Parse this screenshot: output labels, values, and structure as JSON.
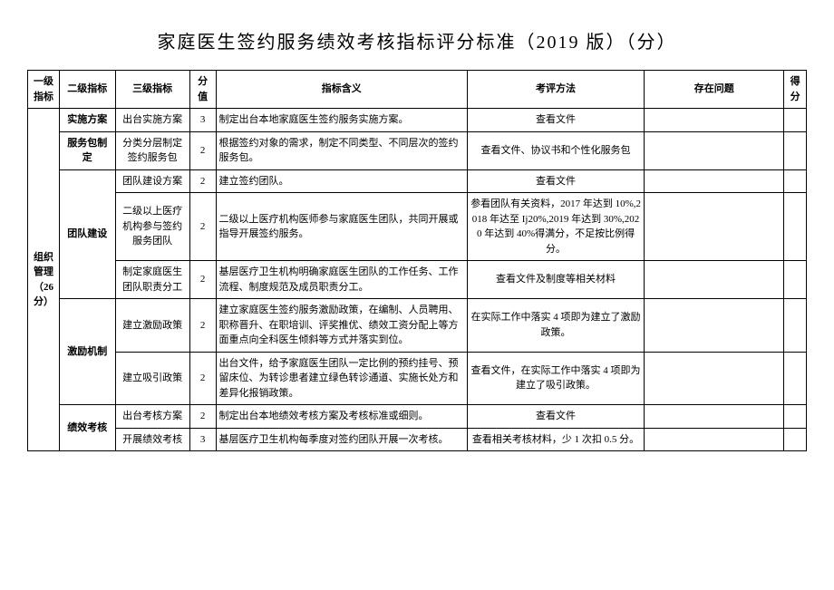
{
  "title": "家庭医生签约服务绩效考核指标评分标准（2019 版）（分）",
  "headers": {
    "l1": "一级指标",
    "l2": "二级指标",
    "l3": "三级指标",
    "score": "分值",
    "meaning": "指标含义",
    "method": "考评方法",
    "problem": "存在问题",
    "got": "得分"
  },
  "l1_label": "组织管理（26 分）",
  "groups": [
    {
      "l2": "实施方案",
      "rows": [
        {
          "l3": "出台实施方案",
          "score": "3",
          "meaning": "制定出台本地家庭医生签约服务实施方案。",
          "method": "查看文件",
          "problem": "",
          "got": ""
        }
      ]
    },
    {
      "l2": "服务包制定",
      "rows": [
        {
          "l3": "分类分层制定签约服务包",
          "score": "2",
          "meaning": "根据签约对象的需求，制定不同类型、不同层次的签约服务包。",
          "method": "查看文件、协议书和个性化服务包",
          "problem": "",
          "got": ""
        }
      ]
    },
    {
      "l2": "团队建设",
      "rows": [
        {
          "l3": "团队建设方案",
          "score": "2",
          "meaning": "建立签约团队。",
          "method": "查看文件",
          "problem": "",
          "got": ""
        },
        {
          "l3": "二级以上医疗机构参与签约服务团队",
          "score": "2",
          "meaning": "二级以上医疗机构医师参与家庭医生团队，共同开展或指导开展签约服务。",
          "method": "参看团队有关资料，2017 年达到 10%,2018 年达至 Ij20%,2019 年达到 30%,2020 年达到 40%得满分，不足按比例得分。",
          "problem": "",
          "got": ""
        },
        {
          "l3": "制定家庭医生团队职责分工",
          "score": "2",
          "meaning": "基层医疗卫生机构明确家庭医生团队的工作任务、工作流程、制度规范及成员职责分工。",
          "method": "查看文件及制度等相关材料",
          "problem": "",
          "got": ""
        }
      ]
    },
    {
      "l2": "激励机制",
      "rows": [
        {
          "l3": "建立激励政策",
          "score": "2",
          "meaning": "建立家庭医生签约服务激励政策，在编制、人员聘用、职称晋升、在职培训、评奖推优、绩效工资分配上等方面重点向全科医生倾斜等方式并落实到位。",
          "method": "在实际工作中落实 4 项即为建立了激励政策。",
          "problem": "",
          "got": ""
        },
        {
          "l3": "建立吸引政策",
          "score": "2",
          "meaning": "出台文件，给予家庭医生团队一定比例的预约挂号、预留床位、为转诊患者建立绿色转诊通道、实施长处方和差异化报销政策。",
          "method": "查看文件，在实际工作中落实 4 项即为建立了吸引政策。",
          "problem": "",
          "got": ""
        }
      ]
    },
    {
      "l2": "绩效考核",
      "rows": [
        {
          "l3": "出台考核方案",
          "score": "2",
          "meaning": "制定出台本地绩效考核方案及考核标准或细则。",
          "method": "查看文件",
          "problem": "",
          "got": ""
        },
        {
          "l3": "开展绩效考核",
          "score": "3",
          "meaning": "基层医疗卫生机构每季度对签约团队开展一次考核。",
          "method": "查看相关考核材料，少 1 次扣 0.5 分。",
          "problem": "",
          "got": ""
        }
      ]
    }
  ]
}
